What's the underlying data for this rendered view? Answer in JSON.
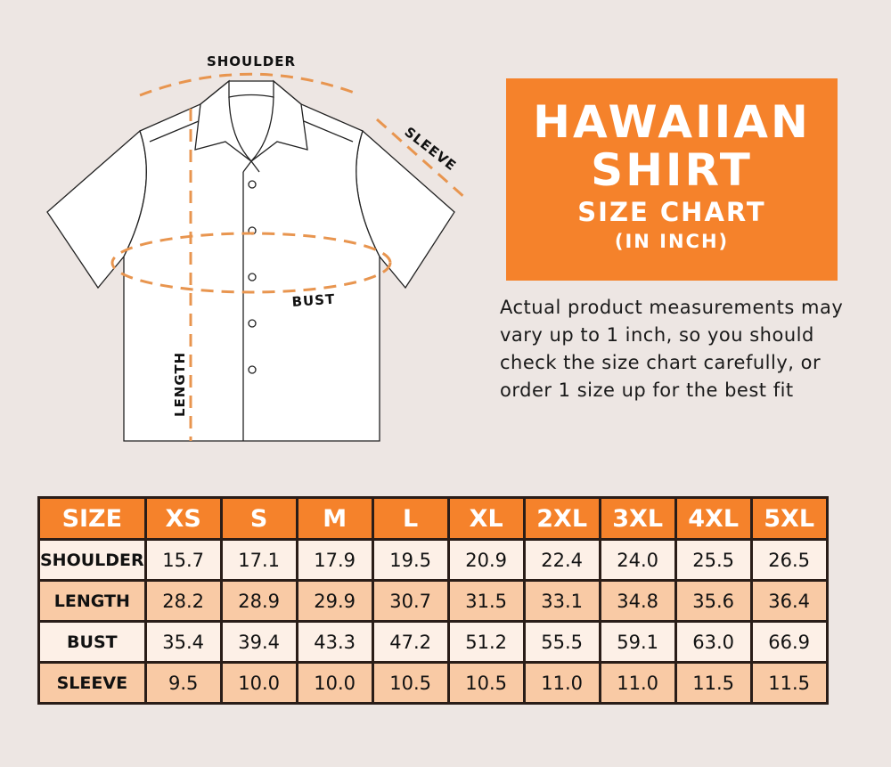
{
  "title": {
    "line1": "HAWAIIAN",
    "line2": "SHIRT",
    "line3": "SIZE CHART",
    "line4": "(IN INCH)"
  },
  "note": "Actual product measurements may vary up to 1 inch, so you should check the size chart carefully, or order 1 size up for the best fit",
  "diagram": {
    "shoulder": "SHOULDER",
    "sleeve": "SLEEVE",
    "bust": "BUST",
    "length": "LENGTH"
  },
  "colors": {
    "accent": "#f5822b",
    "row_light": "#fdf0e7",
    "row_peach": "#f9caa5",
    "background": "#ede6e3",
    "dash": "#e8954f"
  },
  "table": {
    "header": [
      "SIZE",
      "XS",
      "S",
      "M",
      "L",
      "XL",
      "2XL",
      "3XL",
      "4XL",
      "5XL"
    ],
    "rows": [
      {
        "label": "SHOULDER",
        "values": [
          "15.7",
          "17.1",
          "17.9",
          "19.5",
          "20.9",
          "22.4",
          "24.0",
          "25.5",
          "26.5"
        ]
      },
      {
        "label": "LENGTH",
        "values": [
          "28.2",
          "28.9",
          "29.9",
          "30.7",
          "31.5",
          "33.1",
          "34.8",
          "35.6",
          "36.4"
        ]
      },
      {
        "label": "BUST",
        "values": [
          "35.4",
          "39.4",
          "43.3",
          "47.2",
          "51.2",
          "55.5",
          "59.1",
          "63.0",
          "66.9"
        ]
      },
      {
        "label": "SLEEVE",
        "values": [
          "9.5",
          "10.0",
          "10.0",
          "10.5",
          "10.5",
          "11.0",
          "11.0",
          "11.5",
          "11.5"
        ]
      }
    ]
  }
}
